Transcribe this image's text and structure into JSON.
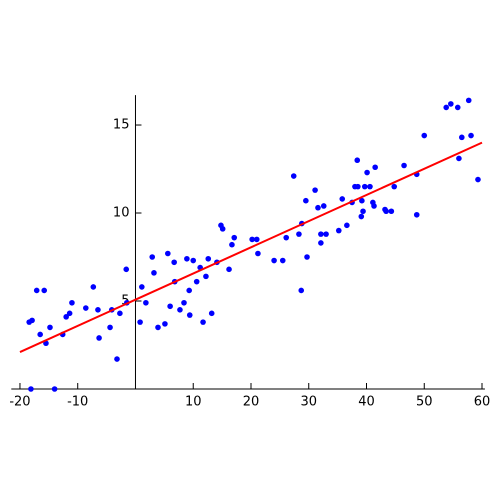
{
  "chart_data": {
    "type": "scatter",
    "xlim": [
      -21.5,
      60.5
    ],
    "ylim": [
      0,
      16.7
    ],
    "xticks": [
      -20,
      -10,
      10,
      20,
      30,
      40,
      50,
      60
    ],
    "yticks": [
      5,
      10,
      15
    ],
    "series": [
      {
        "type": "scatter",
        "color": "#0000ff",
        "x": [
          -18.4,
          -17.9,
          -17.1,
          -15.8,
          -16.5,
          -15.5,
          -14.8,
          -14.0,
          -18.1,
          -12.6,
          -12.0,
          -11.4,
          -11.0,
          -8.6,
          -7.3,
          -6.5,
          -6.3,
          -4.4,
          -4.1,
          -3.2,
          -2.7,
          -1.6,
          -1.5,
          0.8,
          1.1,
          1.8,
          2.9,
          3.2,
          3.9,
          5.1,
          5.6,
          6.0,
          6.7,
          6.8,
          7.7,
          8.4,
          8.9,
          9.3,
          9.4,
          10.0,
          10.6,
          11.2,
          11.7,
          12.2,
          13.2,
          12.6,
          14.1,
          14.8,
          15.1,
          16.2,
          16.7,
          17.1,
          20.2,
          21.0,
          21.2,
          24.0,
          25.5,
          26.1,
          27.4,
          28.3,
          28.8,
          28.7,
          29.5,
          29.7,
          31.1,
          31.6,
          32.1,
          32.1,
          32.6,
          33.0,
          35.2,
          35.8,
          36.6,
          37.5,
          38.0,
          38.4,
          38.5,
          39.1,
          39.2,
          39.4,
          39.7,
          40.1,
          40.6,
          41.1,
          41.3,
          41.5,
          43.2,
          43.4,
          44.3,
          44.8,
          46.5,
          48.7,
          48.7,
          50.0,
          53.8,
          54.6,
          55.8,
          56.0,
          56.5,
          57.7,
          58.1,
          59.3
        ],
        "y": [
          3.8,
          3.9,
          5.6,
          5.6,
          3.1,
          2.6,
          3.5,
          0.0,
          0.0,
          3.1,
          4.1,
          4.3,
          4.9,
          4.6,
          5.8,
          4.5,
          2.9,
          3.5,
          4.5,
          1.7,
          4.3,
          6.8,
          4.9,
          3.8,
          5.8,
          4.9,
          7.5,
          6.6,
          3.5,
          3.7,
          7.7,
          4.7,
          7.2,
          6.1,
          4.5,
          4.9,
          7.4,
          5.6,
          4.2,
          7.3,
          6.1,
          6.9,
          3.8,
          6.4,
          4.3,
          7.4,
          7.2,
          9.3,
          9.1,
          6.8,
          8.2,
          8.6,
          8.5,
          8.5,
          7.7,
          7.3,
          7.3,
          8.6,
          12.1,
          8.8,
          9.4,
          5.6,
          10.7,
          7.5,
          11.3,
          10.3,
          8.8,
          8.3,
          10.4,
          8.8,
          9.0,
          10.8,
          9.3,
          10.6,
          11.5,
          13.0,
          11.5,
          9.8,
          10.7,
          10.1,
          11.5,
          12.3,
          11.5,
          10.6,
          10.4,
          12.6,
          10.2,
          10.1,
          10.1,
          11.5,
          12.7,
          9.9,
          12.2,
          14.4,
          16.0,
          16.2,
          16.0,
          13.1,
          14.3,
          16.4,
          14.4,
          11.9
        ]
      },
      {
        "type": "line",
        "color": "#ff0000",
        "x": [
          -20,
          60
        ],
        "y": [
          2.1,
          14.0
        ]
      }
    ]
  }
}
